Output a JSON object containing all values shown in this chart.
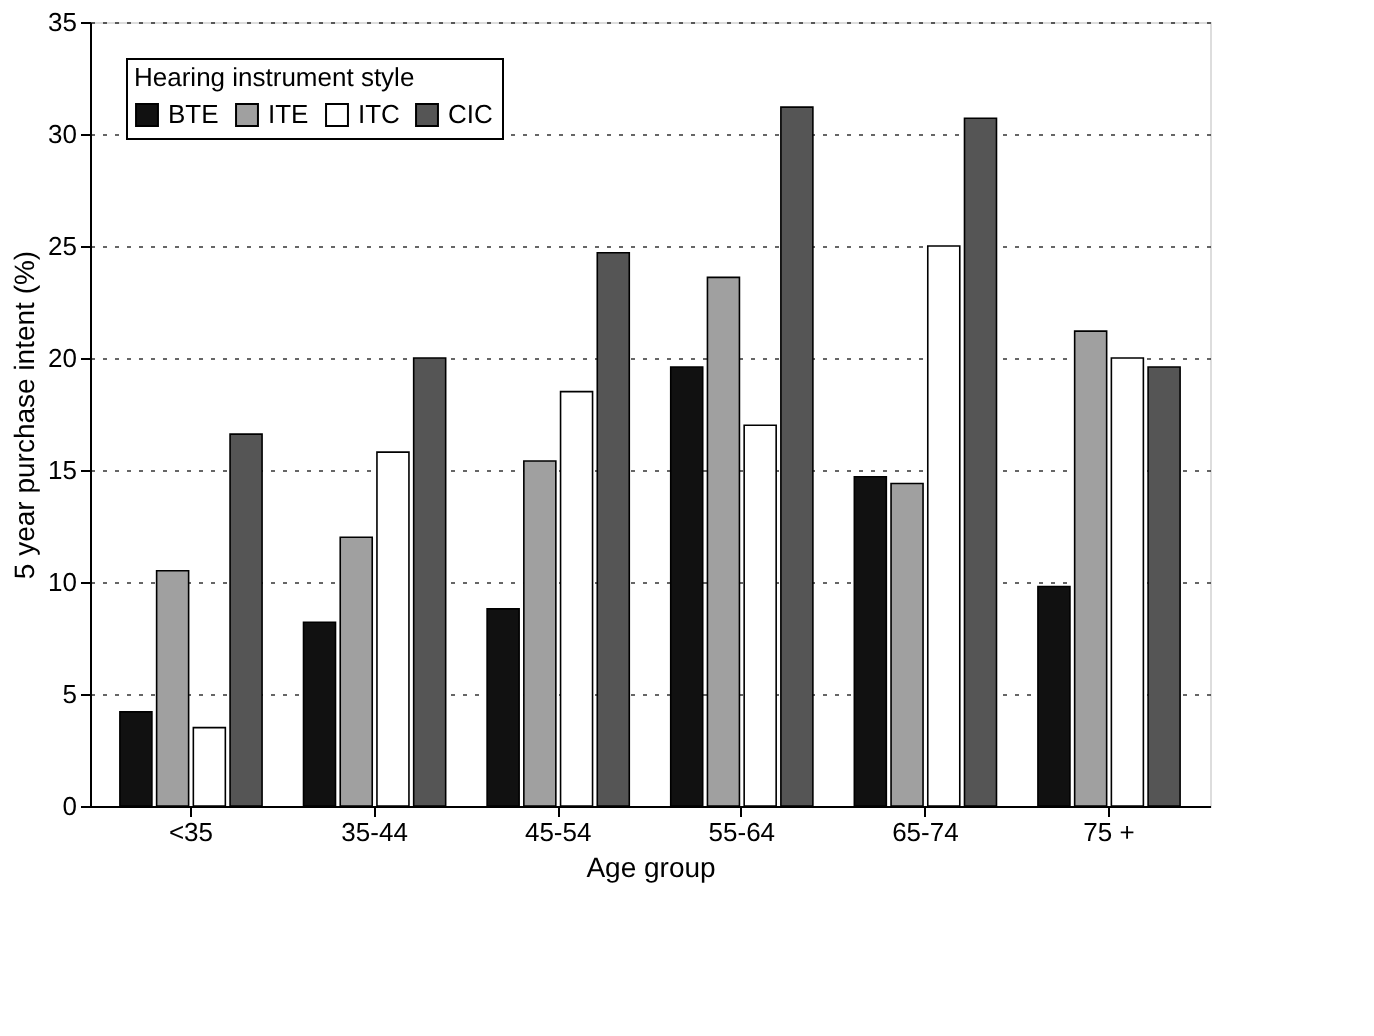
{
  "chart_data": {
    "type": "bar",
    "xlabel": "Age group",
    "ylabel": "5 year purchase intent (%)",
    "legend_title": "Hearing instrument style",
    "categories": [
      "<35",
      "35-44",
      "45-54",
      "55-64",
      "65-74",
      "75 +"
    ],
    "series": [
      {
        "name": "BTE",
        "color": "#111111",
        "values": [
          4.2,
          8.2,
          8.8,
          19.6,
          14.7,
          9.8
        ]
      },
      {
        "name": "ITE",
        "color": "#a0a0a0",
        "values": [
          10.5,
          12,
          15.4,
          23.6,
          14.4,
          21.2
        ]
      },
      {
        "name": "ITC",
        "color": "#ffffff",
        "values": [
          3.5,
          15.8,
          18.5,
          17,
          25,
          20
        ]
      },
      {
        "name": "CIC",
        "color": "#555555",
        "values": [
          16.6,
          20,
          24.7,
          31.2,
          30.7,
          19.6
        ]
      }
    ],
    "ylim": [
      0,
      35
    ],
    "yticks": [
      0,
      5,
      10,
      15,
      20,
      25,
      30,
      35
    ],
    "grid": "y",
    "legend": "top left"
  }
}
